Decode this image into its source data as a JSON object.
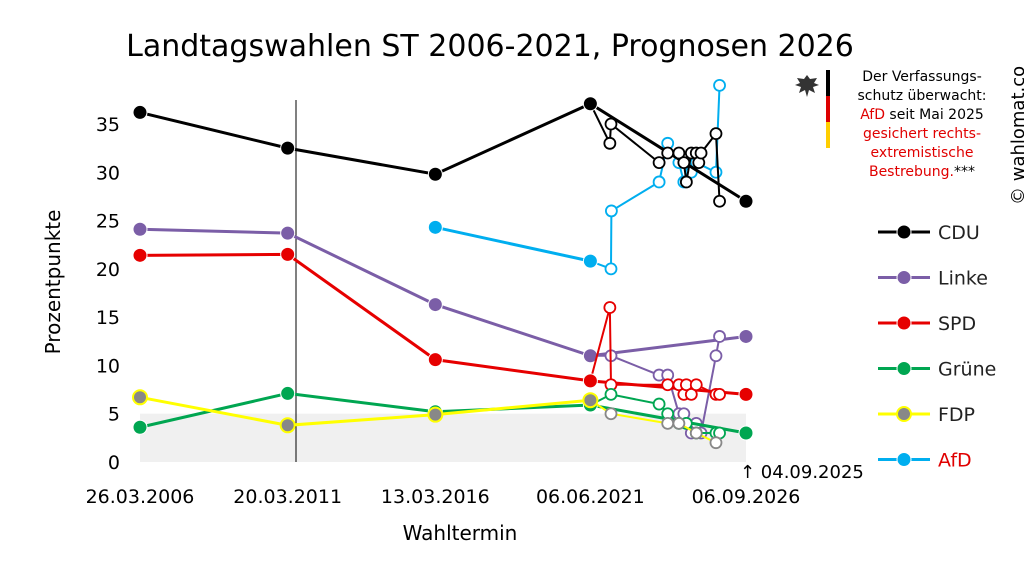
{
  "title": "Landtagswahlen ST 2006-2021, Prognosen 2026",
  "watermark": "© wahlomat.co",
  "note": {
    "line1": "Der Verfassungs-",
    "line2": "schutz überwacht:",
    "line3_red": "AfD",
    "line3_black": " seit Mai 2025",
    "line4": "gesichert rechts-",
    "line5": "extremistische",
    "line6_red": "Bestrebung.",
    "line6_black": "***"
  },
  "annotation": "↑ 04.09.2025",
  "colors": {
    "CDU": "#000000",
    "Linke": "#7b5ea7",
    "SPD": "#e60000",
    "Grüne": "#00a651",
    "FDP": "#ffff00",
    "AfD": "#00aeef",
    "shade": "#f0f0f0"
  },
  "chart_data": {
    "type": "line",
    "title": "Landtagswahlen ST 2006-2021, Prognosen 2026",
    "xlabel": "Wahltermin",
    "ylabel": "Prozentpunkte",
    "ylim": [
      0,
      37.5
    ],
    "yticks": [
      0,
      5,
      10,
      15,
      20,
      25,
      30,
      35
    ],
    "xlim": [
      "2006-03-26",
      "2026-09-06"
    ],
    "xticks": [
      "26.03.2006",
      "20.03.2011",
      "13.03.2016",
      "06.06.2021",
      "06.09.2026"
    ],
    "legend_position": "right",
    "grid": false,
    "series": [
      {
        "name": "CDU",
        "elections": [
          [
            "2006-03-26",
            36.2
          ],
          [
            "2011-03-20",
            32.5
          ],
          [
            "2016-03-13",
            29.8
          ],
          [
            "2021-06-06",
            37.1
          ],
          [
            "2026-09-06",
            27
          ]
        ],
        "polls": [
          [
            "2021-06-06",
            37.1
          ],
          [
            "2022-02-01",
            33
          ],
          [
            "2022-02-15",
            35
          ],
          [
            "2023-10-01",
            31
          ],
          [
            "2024-01-15",
            32
          ],
          [
            "2024-06-01",
            32
          ],
          [
            "2024-08-01",
            31
          ],
          [
            "2024-09-01",
            29
          ],
          [
            "2024-11-01",
            32
          ],
          [
            "2025-01-01",
            32
          ],
          [
            "2025-02-01",
            31
          ],
          [
            "2025-03-01",
            32
          ],
          [
            "2025-09-01",
            34
          ],
          [
            "2025-10-15",
            27
          ]
        ]
      },
      {
        "name": "Linke",
        "elections": [
          [
            "2006-03-26",
            24.1
          ],
          [
            "2011-03-20",
            23.7
          ],
          [
            "2016-03-13",
            16.3
          ],
          [
            "2021-06-06",
            11.0
          ],
          [
            "2026-09-06",
            13
          ]
        ],
        "polls": [
          [
            "2021-06-06",
            11.0
          ],
          [
            "2022-02-15",
            11
          ],
          [
            "2023-10-01",
            9
          ],
          [
            "2024-01-15",
            9
          ],
          [
            "2024-06-01",
            5
          ],
          [
            "2024-08-01",
            5
          ],
          [
            "2024-09-01",
            4
          ],
          [
            "2024-11-01",
            3
          ],
          [
            "2025-01-01",
            4
          ],
          [
            "2025-03-01",
            3
          ],
          [
            "2025-09-01",
            11
          ],
          [
            "2025-10-15",
            13
          ]
        ]
      },
      {
        "name": "SPD",
        "elections": [
          [
            "2006-03-26",
            21.4
          ],
          [
            "2011-03-20",
            21.5
          ],
          [
            "2016-03-13",
            10.6
          ],
          [
            "2021-06-06",
            8.4
          ],
          [
            "2026-09-06",
            7
          ]
        ],
        "polls": [
          [
            "2021-06-06",
            8.4
          ],
          [
            "2022-02-01",
            16
          ],
          [
            "2022-02-15",
            8
          ],
          [
            "2024-01-15",
            8
          ],
          [
            "2024-06-01",
            8
          ],
          [
            "2024-08-01",
            7
          ],
          [
            "2024-09-01",
            8
          ],
          [
            "2024-11-01",
            7
          ],
          [
            "2025-01-01",
            8
          ],
          [
            "2025-09-01",
            7
          ],
          [
            "2025-10-15",
            7
          ]
        ]
      },
      {
        "name": "Grüne",
        "elections": [
          [
            "2006-03-26",
            3.6
          ],
          [
            "2011-03-20",
            7.1
          ],
          [
            "2016-03-13",
            5.2
          ],
          [
            "2021-06-06",
            5.9
          ],
          [
            "2026-09-06",
            3
          ]
        ],
        "polls": [
          [
            "2021-06-06",
            5.9
          ],
          [
            "2022-02-15",
            7
          ],
          [
            "2023-10-01",
            6
          ],
          [
            "2024-01-15",
            5
          ],
          [
            "2024-06-01",
            4
          ],
          [
            "2024-09-01",
            4
          ],
          [
            "2025-01-01",
            3
          ],
          [
            "2025-09-01",
            3
          ],
          [
            "2025-10-15",
            3
          ]
        ]
      },
      {
        "name": "FDP",
        "elections": [
          [
            "2006-03-26",
            6.7
          ],
          [
            "2011-03-20",
            3.8
          ],
          [
            "2016-03-13",
            4.9
          ],
          [
            "2021-06-06",
            6.4
          ]
        ],
        "polls": [
          [
            "2021-06-06",
            6.4
          ],
          [
            "2022-02-15",
            5
          ],
          [
            "2024-01-15",
            4
          ],
          [
            "2024-06-01",
            4
          ],
          [
            "2025-01-01",
            3
          ],
          [
            "2025-09-01",
            2
          ]
        ]
      },
      {
        "name": "AfD",
        "elections": [
          [
            "2016-03-13",
            24.3
          ],
          [
            "2021-06-06",
            20.8
          ]
        ],
        "polls": [
          [
            "2021-06-06",
            20.8
          ],
          [
            "2022-02-15",
            20
          ],
          [
            "2022-02-20",
            26
          ],
          [
            "2023-10-01",
            29
          ],
          [
            "2024-01-15",
            33
          ],
          [
            "2024-06-01",
            31
          ],
          [
            "2024-08-01",
            29
          ],
          [
            "2024-11-01",
            30
          ],
          [
            "2025-01-01",
            31
          ],
          [
            "2025-09-01",
            30
          ],
          [
            "2025-10-15",
            39
          ]
        ]
      }
    ]
  }
}
